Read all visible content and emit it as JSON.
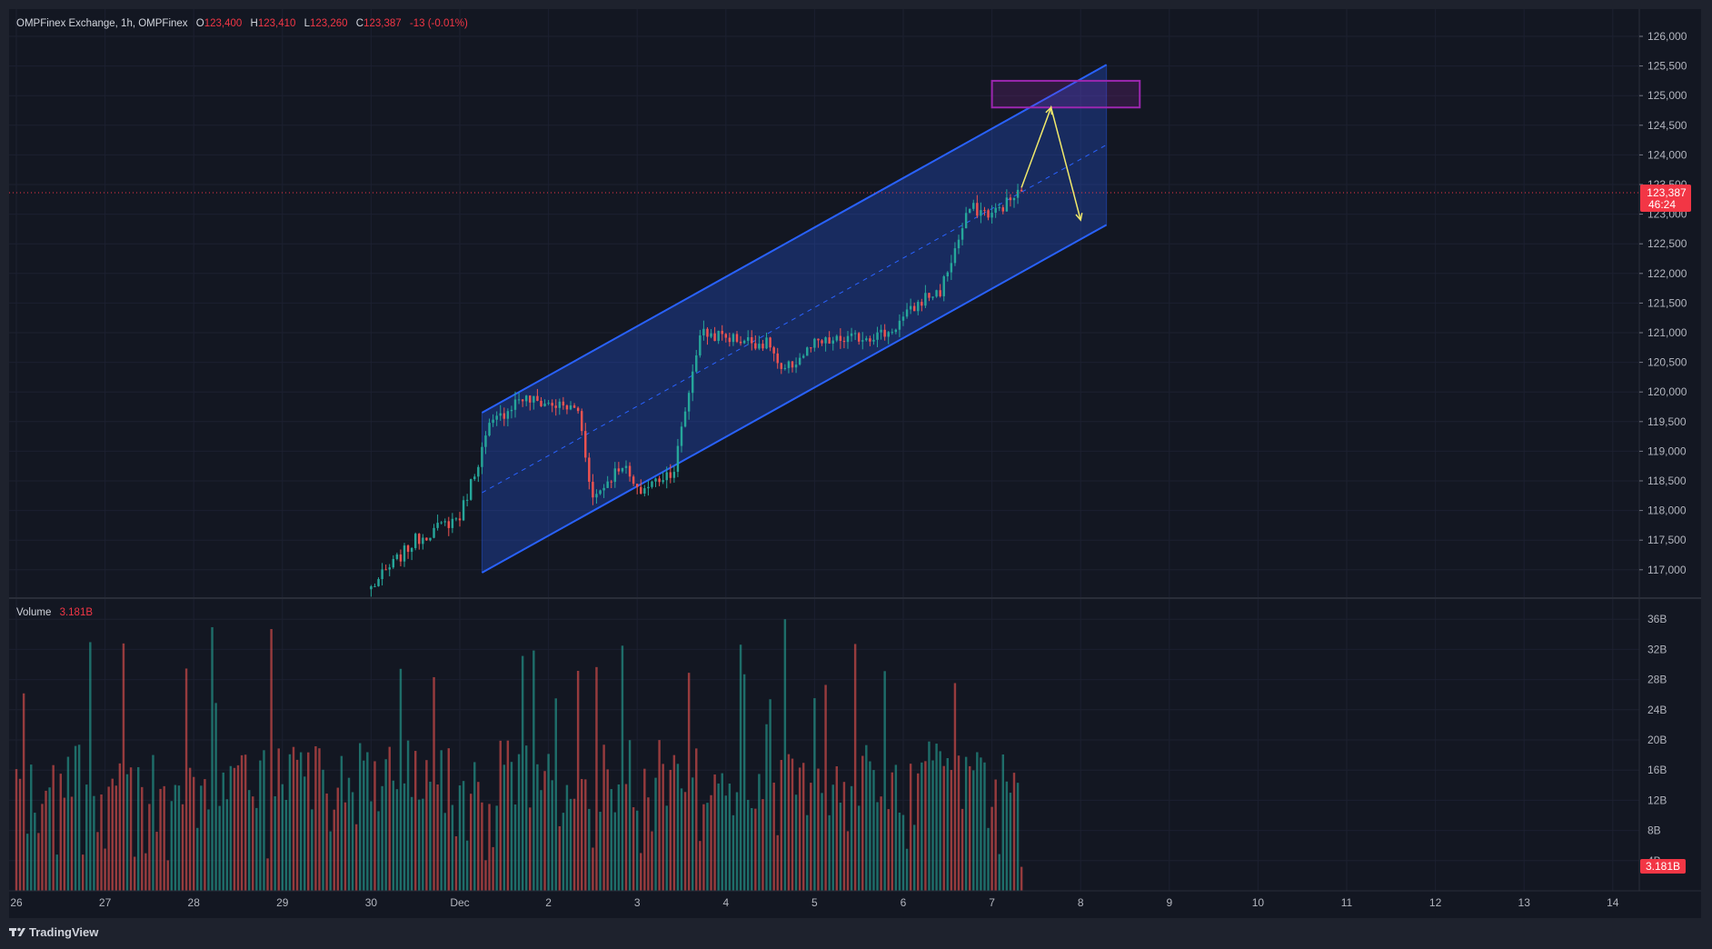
{
  "header": {
    "symbol": "OMPFinex Exchange, 1h, OMPFinex",
    "o_label": "O",
    "o_value": "123,400",
    "h_label": "H",
    "h_value": "123,410",
    "l_label": "L",
    "l_value": "123,260",
    "c_label": "C",
    "c_value": "123,387",
    "change": "-13 (-0.01%)"
  },
  "price_axis": {
    "ticks": [
      "126,000",
      "125,500",
      "125,000",
      "124,500",
      "124,000",
      "123,500",
      "123,000",
      "122,500",
      "122,000",
      "121,500",
      "121,000",
      "120,500",
      "120,000",
      "119,500",
      "119,000",
      "118,500",
      "118,000",
      "117,500",
      "117,000"
    ],
    "last_price": "123,387",
    "countdown": "46:24"
  },
  "volume": {
    "label": "Volume",
    "value": "3.181B",
    "ticks": [
      "36B",
      "32B",
      "28B",
      "24B",
      "20B",
      "16B",
      "12B",
      "8B",
      "4B"
    ],
    "current": "3.181B"
  },
  "time_axis": {
    "labels": [
      "26",
      "27",
      "28",
      "29",
      "30",
      "Dec",
      "2",
      "3",
      "4",
      "5",
      "6",
      "7",
      "8",
      "9",
      "10",
      "11",
      "12",
      "13",
      "14"
    ]
  },
  "branding": {
    "logo_text": "TradingView"
  },
  "colors": {
    "background": "#131722",
    "up": "#26a69a",
    "down": "#ef5350",
    "channel": "#2962ff",
    "target_box": "#9c27b0",
    "projection": "#f2ea6b",
    "price_tag": "#f23645"
  },
  "chart_data": {
    "type": "candlestick",
    "interval": "1h",
    "x_range": [
      "Nov 26",
      "Dec 14"
    ],
    "ylim": [
      116600,
      126300
    ],
    "price_anchors": [
      {
        "x": "Nov 30 00:00",
        "close": 116700
      },
      {
        "x": "Nov 30 12:00",
        "close": 117500
      },
      {
        "x": "Dec 1 00:00",
        "close": 117900
      },
      {
        "x": "Dec 1 08:00",
        "close": 119400
      },
      {
        "x": "Dec 1 16:00",
        "close": 119900
      },
      {
        "x": "Dec 2 08:00",
        "close": 119700
      },
      {
        "x": "Dec 2 12:00",
        "close": 118200
      },
      {
        "x": "Dec 2 20:00",
        "close": 118800
      },
      {
        "x": "Dec 3 00:00",
        "close": 118300
      },
      {
        "x": "Dec 3 10:00",
        "close": 118700
      },
      {
        "x": "Dec 3 17:00",
        "close": 121000
      },
      {
        "x": "Dec 4 12:00",
        "close": 120800
      },
      {
        "x": "Dec 4 15:00",
        "close": 120300
      },
      {
        "x": "Dec 5 00:00",
        "close": 120800
      },
      {
        "x": "Dec 5 20:00",
        "close": 121000
      },
      {
        "x": "Dec 6 06:00",
        "close": 121600
      },
      {
        "x": "Dec 6 10:00",
        "close": 121700
      },
      {
        "x": "Dec 6 18:00",
        "close": 123100
      },
      {
        "x": "Dec 7 00:00",
        "close": 123000
      },
      {
        "x": "Dec 7 08:00",
        "close": 123387
      }
    ],
    "channel": {
      "upper": [
        [
          "Dec 1 06:00",
          119650
        ],
        [
          "Dec 8 07:00",
          125520
        ]
      ],
      "lower": [
        [
          "Dec 1 06:00",
          116950
        ],
        [
          "Dec 8 07:00",
          122820
        ]
      ]
    },
    "target_zone": {
      "from": "Dec 7 00:00",
      "to": "Dec 8 16:00",
      "low": 124800,
      "high": 125250
    },
    "projection": [
      [
        "Dec 7 08:00",
        123450
      ],
      [
        "Dec 7 16:00",
        124800
      ],
      [
        "Dec 8 00:00",
        122900
      ]
    ],
    "volume_ylim": [
      0,
      38
    ],
    "volume_unit": "B"
  }
}
